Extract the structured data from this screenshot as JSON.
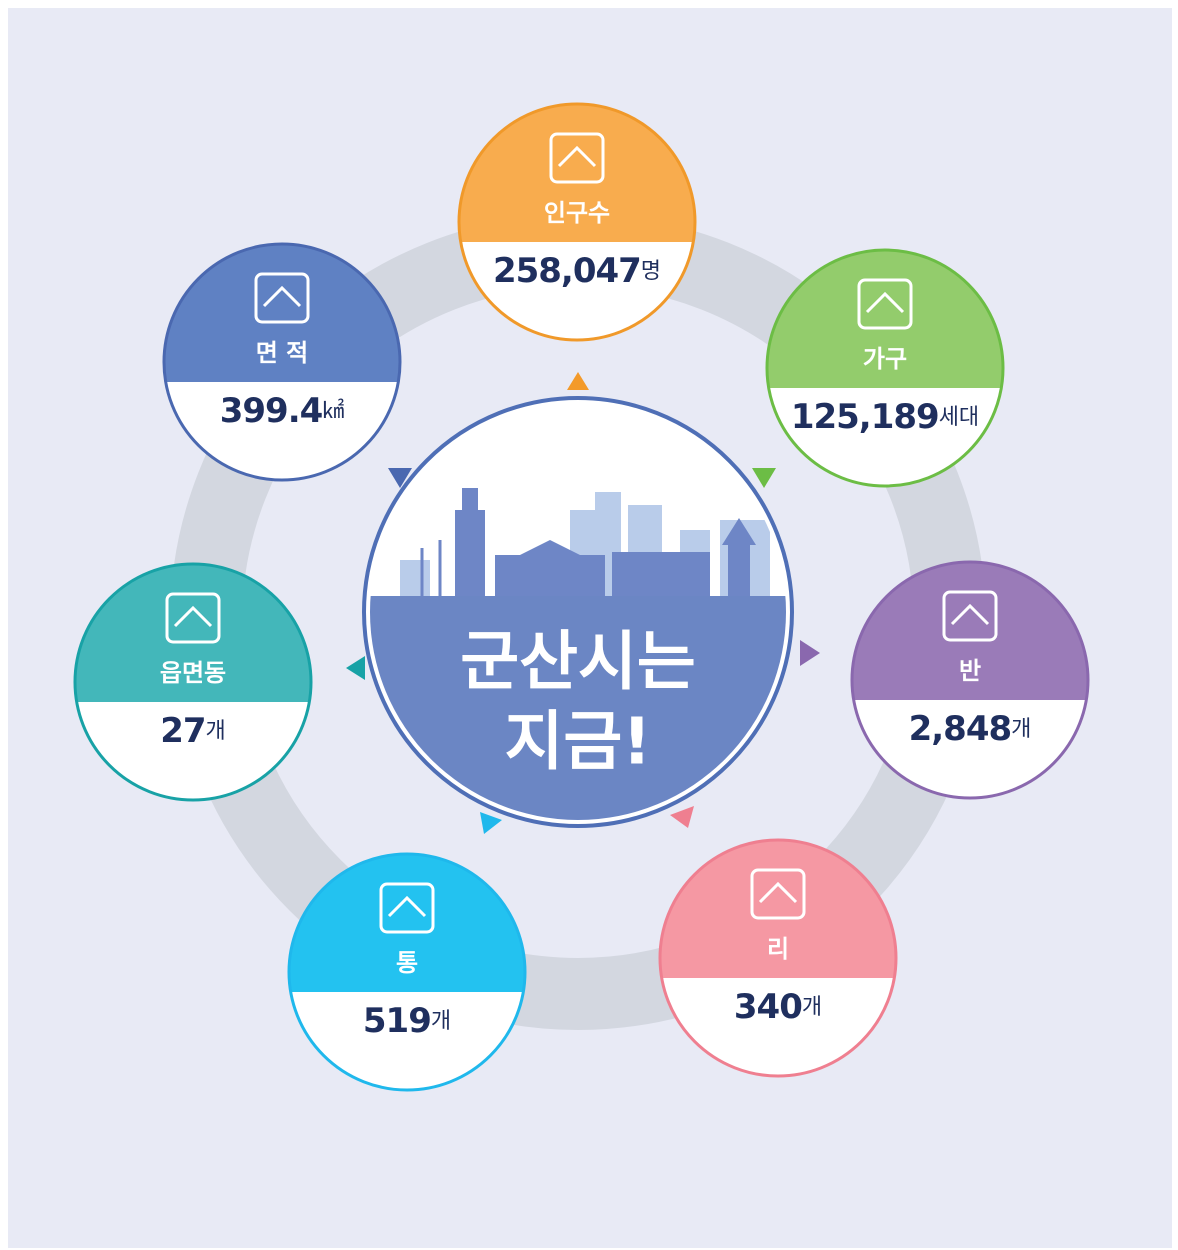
{
  "center": {
    "lines": [
      "군산시는",
      "지금!"
    ]
  },
  "nodes": [
    {
      "label": "인구수",
      "value": "258,047",
      "unit": "명"
    },
    {
      "label": "가구",
      "value": "125,189",
      "unit": "세대"
    },
    {
      "label": "반",
      "value": "2,848",
      "unit": "개"
    },
    {
      "label": "리",
      "value": "340",
      "unit": "개"
    },
    {
      "label": "통",
      "value": "519",
      "unit": "개"
    },
    {
      "label": "읍면동",
      "value": "27",
      "unit": "개"
    },
    {
      "label": "면 적",
      "value": "399.4",
      "unit": "㎢"
    }
  ]
}
